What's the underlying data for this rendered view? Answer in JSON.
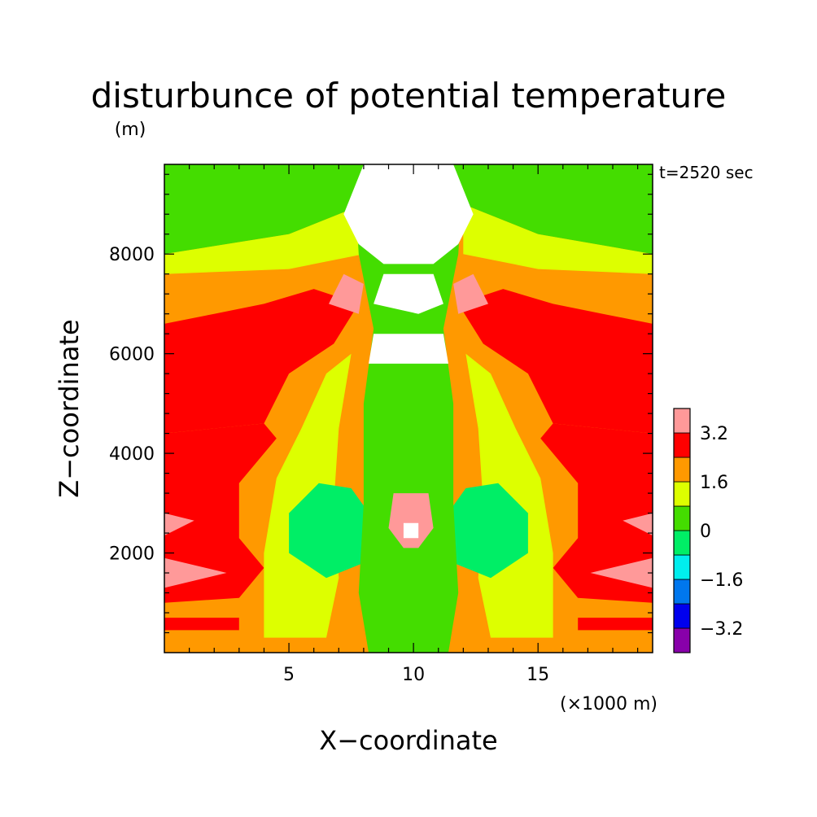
{
  "chart_data": {
    "type": "heatmap",
    "title": "disturbunce of potential temperature",
    "yunit": "(m)",
    "xlabel": "X−coordinate",
    "xunit": "(×1000 m)",
    "ylabel": "Z−coordinate",
    "annotation": "t=2520 sec",
    "xlim": [
      0,
      19.6
    ],
    "ylim": [
      0,
      9800
    ],
    "xticks": [
      5,
      10,
      15
    ],
    "xtick_labels": [
      "5",
      "10",
      "15"
    ],
    "yticks": [
      2000,
      4000,
      6000,
      8000
    ],
    "ytick_labels": [
      "2000",
      "4000",
      "6000",
      "8000"
    ],
    "grid": false,
    "colorbar": {
      "levels": [
        -4.0,
        -3.2,
        -2.4,
        -1.6,
        -0.8,
        0,
        0.8,
        1.6,
        2.4,
        3.2,
        4.0
      ],
      "colors": [
        "#8800aa",
        "#0000ee",
        "#0077ee",
        "#00eeee",
        "#00ee66",
        "#44dd00",
        "#ddff00",
        "#ff9900",
        "#ff0000",
        "#ff9999"
      ],
      "tick_labels": [
        "−3.2",
        "−1.6",
        "0",
        "1.6",
        "3.2"
      ],
      "tick_values": [
        -3.2,
        -1.6,
        0,
        1.6,
        3.2
      ]
    },
    "regions": [
      {
        "name": "upper-green",
        "value": 0.4,
        "color": "#44dd00",
        "poly": [
          [
            0,
            9800
          ],
          [
            19.6,
            9800
          ],
          [
            19.6,
            8000
          ],
          [
            15,
            8400
          ],
          [
            12,
            9000
          ],
          [
            10,
            9000
          ],
          [
            8,
            9000
          ],
          [
            5,
            8400
          ],
          [
            0,
            8000
          ]
        ]
      },
      {
        "name": "upper-yellow-left",
        "value": 1.2,
        "color": "#ddff00",
        "poly": [
          [
            0,
            8000
          ],
          [
            5,
            8400
          ],
          [
            8,
            9000
          ],
          [
            8,
            8000
          ],
          [
            5,
            7700
          ],
          [
            0,
            7600
          ]
        ]
      },
      {
        "name": "upper-yellow-right",
        "value": 1.2,
        "color": "#ddff00",
        "poly": [
          [
            19.6,
            8000
          ],
          [
            15,
            8400
          ],
          [
            12,
            9000
          ],
          [
            12,
            8000
          ],
          [
            15,
            7700
          ],
          [
            19.6,
            7600
          ]
        ]
      },
      {
        "name": "left-red-plume",
        "value": 2.8,
        "color": "#ff0000",
        "poly": [
          [
            0,
            4400
          ],
          [
            2,
            4500
          ],
          [
            4,
            4600
          ],
          [
            5,
            5600
          ],
          [
            6.8,
            6200
          ],
          [
            7.8,
            7000
          ],
          [
            6,
            7300
          ],
          [
            4,
            7000
          ],
          [
            2,
            6800
          ],
          [
            0,
            6600
          ]
        ]
      },
      {
        "name": "right-red-plume",
        "value": 2.8,
        "color": "#ff0000",
        "poly": [
          [
            19.6,
            4400
          ],
          [
            17.6,
            4500
          ],
          [
            15.6,
            4600
          ],
          [
            14.6,
            5600
          ],
          [
            12.8,
            6200
          ],
          [
            11.8,
            7000
          ],
          [
            13.6,
            7300
          ],
          [
            15.6,
            7000
          ],
          [
            17.6,
            6800
          ],
          [
            19.6,
            6600
          ]
        ]
      },
      {
        "name": "left-red-low",
        "value": 2.8,
        "color": "#ff0000",
        "poly": [
          [
            0,
            1000
          ],
          [
            3,
            1100
          ],
          [
            4,
            1700
          ],
          [
            3,
            2300
          ],
          [
            3,
            3400
          ],
          [
            4.5,
            4300
          ],
          [
            4,
            4600
          ],
          [
            0,
            4400
          ]
        ]
      },
      {
        "name": "right-red-low",
        "value": 2.8,
        "color": "#ff0000",
        "poly": [
          [
            19.6,
            1000
          ],
          [
            16.6,
            1100
          ],
          [
            15.6,
            1700
          ],
          [
            16.6,
            2300
          ],
          [
            16.6,
            3400
          ],
          [
            15.1,
            4300
          ],
          [
            15.6,
            4600
          ],
          [
            19.6,
            4400
          ]
        ]
      },
      {
        "name": "left-yellow-column",
        "value": 1.2,
        "color": "#ddff00",
        "poly": [
          [
            4,
            300
          ],
          [
            6.5,
            300
          ],
          [
            7,
            1500
          ],
          [
            6.8,
            3000
          ],
          [
            7,
            4500
          ],
          [
            7.5,
            6000
          ],
          [
            6.5,
            5600
          ],
          [
            5.5,
            4500
          ],
          [
            4.5,
            3500
          ],
          [
            4,
            2000
          ]
        ]
      },
      {
        "name": "right-yellow-column",
        "value": 1.2,
        "color": "#ddff00",
        "poly": [
          [
            15.6,
            300
          ],
          [
            13.1,
            300
          ],
          [
            12.6,
            1500
          ],
          [
            12.8,
            3000
          ],
          [
            12.6,
            4500
          ],
          [
            12.1,
            6000
          ],
          [
            13.1,
            5600
          ],
          [
            14.1,
            4500
          ],
          [
            15.1,
            3500
          ],
          [
            15.6,
            2000
          ]
        ]
      },
      {
        "name": "left-green-blob",
        "value": -0.4,
        "color": "#00ee66",
        "poly": [
          [
            5,
            2000
          ],
          [
            6.5,
            1500
          ],
          [
            8,
            1800
          ],
          [
            8.5,
            2600
          ],
          [
            7.5,
            3300
          ],
          [
            6.2,
            3400
          ],
          [
            5,
            2800
          ]
        ]
      },
      {
        "name": "right-green-blob",
        "value": -0.4,
        "color": "#00ee66",
        "poly": [
          [
            14.6,
            2000
          ],
          [
            13.1,
            1500
          ],
          [
            11.6,
            1800
          ],
          [
            11.1,
            2600
          ],
          [
            12.1,
            3300
          ],
          [
            13.4,
            3400
          ],
          [
            14.6,
            2800
          ]
        ]
      },
      {
        "name": "center-green-column",
        "value": 0.4,
        "color": "#44dd00",
        "poly": [
          [
            8.2,
            0
          ],
          [
            11.4,
            0
          ],
          [
            11.8,
            1200
          ],
          [
            11.6,
            3000
          ],
          [
            11.6,
            5000
          ],
          [
            11.2,
            6500
          ],
          [
            11.8,
            8000
          ],
          [
            12,
            9800
          ],
          [
            7.6,
            9800
          ],
          [
            7.8,
            8000
          ],
          [
            8.4,
            6500
          ],
          [
            8,
            5000
          ],
          [
            8,
            3000
          ],
          [
            7.8,
            1200
          ]
        ]
      },
      {
        "name": "center-white-top",
        "value": 4.4,
        "color": "#ffffff",
        "poly": [
          [
            8,
            9800
          ],
          [
            11.6,
            9800
          ],
          [
            12.4,
            8800
          ],
          [
            11.8,
            8200
          ],
          [
            10.8,
            7800
          ],
          [
            8.8,
            7800
          ],
          [
            7.8,
            8200
          ],
          [
            7.2,
            8800
          ]
        ]
      },
      {
        "name": "center-white-mid",
        "value": 4.4,
        "color": "#ffffff",
        "poly": [
          [
            8.8,
            7600
          ],
          [
            10.8,
            7600
          ],
          [
            11.2,
            7000
          ],
          [
            10.2,
            6800
          ],
          [
            8.4,
            7000
          ]
        ]
      },
      {
        "name": "center-white-band",
        "value": 4.4,
        "color": "#ffffff",
        "poly": [
          [
            8.4,
            6400
          ],
          [
            11.2,
            6400
          ],
          [
            11.4,
            5800
          ],
          [
            8.2,
            5800
          ]
        ]
      },
      {
        "name": "left-pink-patch-top",
        "value": 3.6,
        "color": "#ff9999",
        "poly": [
          [
            6.6,
            7000
          ],
          [
            7.8,
            6800
          ],
          [
            8,
            7400
          ],
          [
            7.2,
            7600
          ]
        ]
      },
      {
        "name": "right-pink-patch-top",
        "value": 3.6,
        "color": "#ff9999",
        "poly": [
          [
            13,
            7000
          ],
          [
            11.8,
            6800
          ],
          [
            11.6,
            7400
          ],
          [
            12.4,
            7600
          ]
        ]
      },
      {
        "name": "left-pink-edge-1",
        "value": 3.6,
        "color": "#ff9999",
        "poly": [
          [
            0,
            2800
          ],
          [
            1.2,
            2650
          ],
          [
            0,
            2350
          ]
        ]
      },
      {
        "name": "left-pink-edge-2",
        "value": 3.6,
        "color": "#ff9999",
        "poly": [
          [
            0,
            1900
          ],
          [
            2.5,
            1600
          ],
          [
            0,
            1300
          ]
        ]
      },
      {
        "name": "right-pink-edge-1",
        "value": 3.6,
        "color": "#ff9999",
        "poly": [
          [
            19.6,
            2800
          ],
          [
            18.4,
            2650
          ],
          [
            19.6,
            2350
          ]
        ]
      },
      {
        "name": "right-pink-edge-2",
        "value": 3.6,
        "color": "#ff9999",
        "poly": [
          [
            19.6,
            1900
          ],
          [
            17.1,
            1600
          ],
          [
            19.6,
            1300
          ]
        ]
      },
      {
        "name": "center-pink-low",
        "value": 3.6,
        "color": "#ff9999",
        "poly": [
          [
            9.2,
            3200
          ],
          [
            10.6,
            3200
          ],
          [
            10.8,
            2500
          ],
          [
            10.2,
            2100
          ],
          [
            9.6,
            2100
          ],
          [
            9,
            2500
          ]
        ]
      },
      {
        "name": "center-white-low",
        "value": 4.4,
        "color": "#ffffff",
        "poly": [
          [
            9.6,
            2600
          ],
          [
            10.2,
            2600
          ],
          [
            10.2,
            2300
          ],
          [
            9.6,
            2300
          ]
        ]
      },
      {
        "name": "left-red-bottom",
        "value": 2.8,
        "color": "#ff0000",
        "poly": [
          [
            0,
            700
          ],
          [
            3,
            700
          ],
          [
            3,
            450
          ],
          [
            0,
            450
          ]
        ]
      },
      {
        "name": "right-red-bottom",
        "value": 2.8,
        "color": "#ff0000",
        "poly": [
          [
            19.6,
            700
          ],
          [
            16.6,
            700
          ],
          [
            16.6,
            450
          ],
          [
            19.6,
            450
          ]
        ]
      }
    ]
  }
}
